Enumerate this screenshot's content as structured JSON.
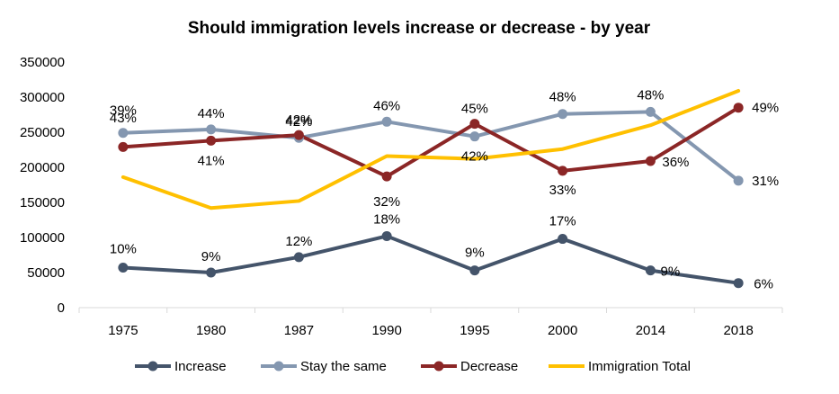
{
  "chart_data": {
    "type": "line",
    "title": "Should immigration levels increase or decrease - by year",
    "categories": [
      "1975",
      "1980",
      "1987",
      "1990",
      "1995",
      "2000",
      "2014",
      "2018"
    ],
    "ylim": [
      0,
      350000
    ],
    "yticks": [
      "0",
      "50000",
      "100000",
      "150000",
      "200000",
      "250000",
      "300000",
      "350000"
    ],
    "grid": false,
    "legend_position": "bottom",
    "series": [
      {
        "name": "Increase",
        "color": "#44546A",
        "marker": true,
        "values": [
          57000,
          50000,
          72000,
          102000,
          53000,
          98000,
          53000,
          35000
        ],
        "labels": [
          "10%",
          "9%",
          "12%",
          "18%",
          "9%",
          "17%",
          "9%",
          "6%"
        ]
      },
      {
        "name": "Stay the same",
        "color": "#8497B0",
        "marker": true,
        "values": [
          249000,
          254000,
          242000,
          265000,
          244000,
          276000,
          279000,
          181000
        ],
        "labels": [
          "43%",
          "44%",
          "42%",
          "46%",
          "42%",
          "48%",
          "48%",
          "31%"
        ]
      },
      {
        "name": "Decrease",
        "color": "#8B2626",
        "marker": true,
        "values": [
          229000,
          238000,
          246000,
          187000,
          262000,
          195000,
          209000,
          285000
        ],
        "labels": [
          "39%",
          "41%",
          "42%",
          "32%",
          "45%",
          "33%",
          "36%",
          "49%"
        ]
      },
      {
        "name": "Immigration Total",
        "color": "#FFC000",
        "marker": false,
        "values": [
          186000,
          142000,
          152000,
          216000,
          212000,
          226000,
          260000,
          309000
        ]
      }
    ]
  }
}
